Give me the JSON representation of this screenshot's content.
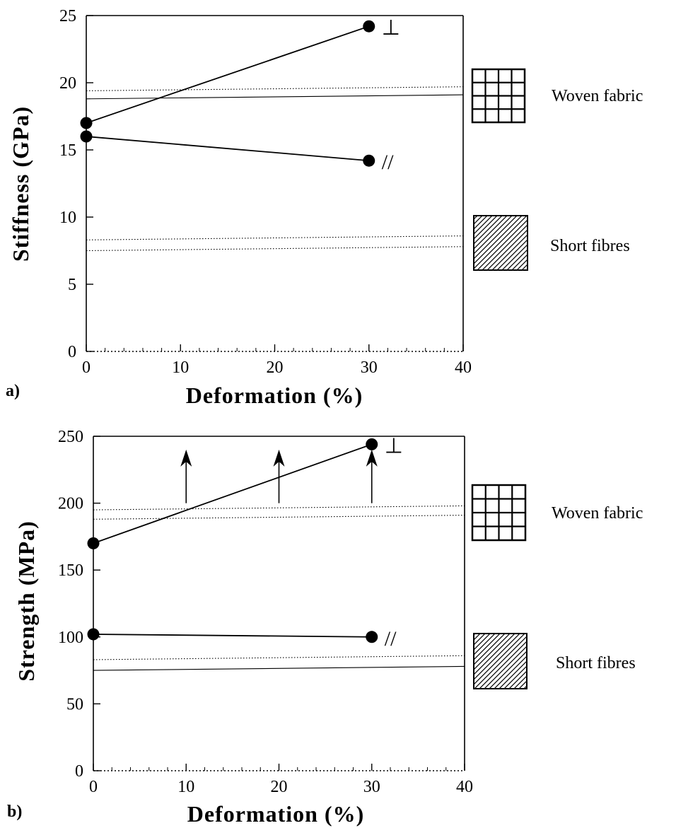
{
  "chart_data": [
    {
      "type": "line",
      "panel_label": "a)",
      "xlabel": "Deformation (%)",
      "ylabel": "Stiffness (GPa)",
      "xlim": [
        0,
        40
      ],
      "ylim": [
        0,
        25
      ],
      "x_ticks": [
        0,
        10,
        20,
        30,
        40
      ],
      "y_ticks": [
        0,
        5,
        10,
        15,
        20,
        25
      ],
      "series": [
        {
          "name": "⊥",
          "x": [
            0,
            30
          ],
          "y": [
            17,
            24.2
          ]
        },
        {
          "name": "//",
          "x": [
            0,
            30
          ],
          "y": [
            16,
            14.2
          ]
        }
      ],
      "reference_lines": [
        {
          "group": "woven",
          "style": "dotted",
          "y_start": 19.4,
          "y_end": 19.7
        },
        {
          "group": "woven",
          "style": "solid",
          "y_start": 18.8,
          "y_end": 19.1
        },
        {
          "group": "short",
          "style": "dotted",
          "y_start": 8.3,
          "y_end": 8.6
        },
        {
          "group": "short",
          "style": "dotted",
          "y_start": 7.5,
          "y_end": 7.8
        }
      ],
      "arrows": [],
      "swatches": [
        {
          "pattern": "grid",
          "label": "Woven fabric"
        },
        {
          "pattern": "hatch",
          "label": "Short fibres"
        }
      ],
      "grid": false
    },
    {
      "type": "line",
      "panel_label": "b)",
      "xlabel": "Deformation (%)",
      "ylabel": "Strength (MPa)",
      "xlim": [
        0,
        40
      ],
      "ylim": [
        0,
        250
      ],
      "x_ticks": [
        0,
        10,
        20,
        30,
        40
      ],
      "y_ticks": [
        0,
        50,
        100,
        150,
        200,
        250
      ],
      "series": [
        {
          "name": "⊥",
          "x": [
            0,
            30
          ],
          "y": [
            170,
            244
          ]
        },
        {
          "name": "//",
          "x": [
            0,
            30
          ],
          "y": [
            102,
            100
          ]
        }
      ],
      "reference_lines": [
        {
          "group": "woven",
          "style": "dotted",
          "y_start": 195,
          "y_end": 198
        },
        {
          "group": "woven",
          "style": "dotted",
          "y_start": 188,
          "y_end": 191
        },
        {
          "group": "short",
          "style": "dotted",
          "y_start": 83,
          "y_end": 86
        },
        {
          "group": "short",
          "style": "solid",
          "y_start": 75,
          "y_end": 78
        }
      ],
      "arrows": [
        {
          "x": 10,
          "y_from": 200,
          "y_to": 240
        },
        {
          "x": 20,
          "y_from": 200,
          "y_to": 240
        },
        {
          "x": 30,
          "y_from": 200,
          "y_to": 240
        }
      ],
      "swatches": [
        {
          "pattern": "grid",
          "label": "Woven fabric"
        },
        {
          "pattern": "hatch",
          "label": "Short fibres"
        }
      ],
      "grid": false
    }
  ]
}
